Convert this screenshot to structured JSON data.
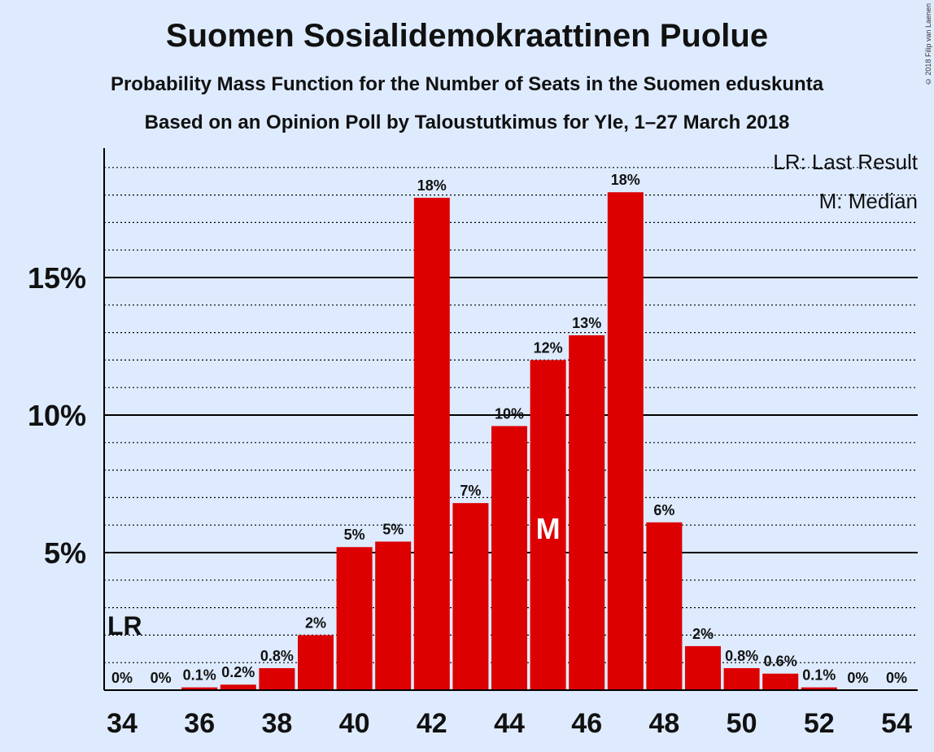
{
  "title": "Suomen Sosialidemokraattinen Puolue",
  "subtitle1": "Probability Mass Function for the Number of Seats in the Suomen eduskunta",
  "subtitle2": "Based on an Opinion Poll by Taloustutkimus for Yle, 1–27 March 2018",
  "credit": "© 2018 Filip van Laenen",
  "legend": {
    "lr": "LR: Last Result",
    "m": "M: Median"
  },
  "colors": {
    "bar": "#dd0000",
    "background": "#deebff"
  },
  "chart_data": {
    "type": "bar",
    "categories": [
      34,
      35,
      36,
      37,
      38,
      39,
      40,
      41,
      42,
      43,
      44,
      45,
      46,
      47,
      48,
      49,
      50,
      51,
      52,
      53,
      54
    ],
    "values": [
      0,
      0,
      0.1,
      0.2,
      0.8,
      2.0,
      5.2,
      5.4,
      17.9,
      6.8,
      9.6,
      12.0,
      12.9,
      18.1,
      6.1,
      1.6,
      0.8,
      0.6,
      0.1,
      0,
      0
    ],
    "data_labels": [
      "0%",
      "0%",
      "0.1%",
      "0.2%",
      "0.8%",
      "2%",
      "5%",
      "5%",
      "18%",
      "7%",
      "10%",
      "12%",
      "13%",
      "18%",
      "6%",
      "2%",
      "0.8%",
      "0.6%",
      "0.1%",
      "0%",
      "0%"
    ],
    "x_tick_labels": [
      "34",
      "36",
      "38",
      "40",
      "42",
      "44",
      "46",
      "48",
      "50",
      "52",
      "54"
    ],
    "y_tick_labels": [
      "5%",
      "10%",
      "15%"
    ],
    "y_ticks": [
      5,
      10,
      15
    ],
    "ylim": [
      0,
      19.5
    ],
    "last_result": {
      "seat": 34,
      "label": "LR"
    },
    "median": {
      "seat": 45,
      "label": "M"
    },
    "grid": true,
    "legend_position": "top-right"
  }
}
